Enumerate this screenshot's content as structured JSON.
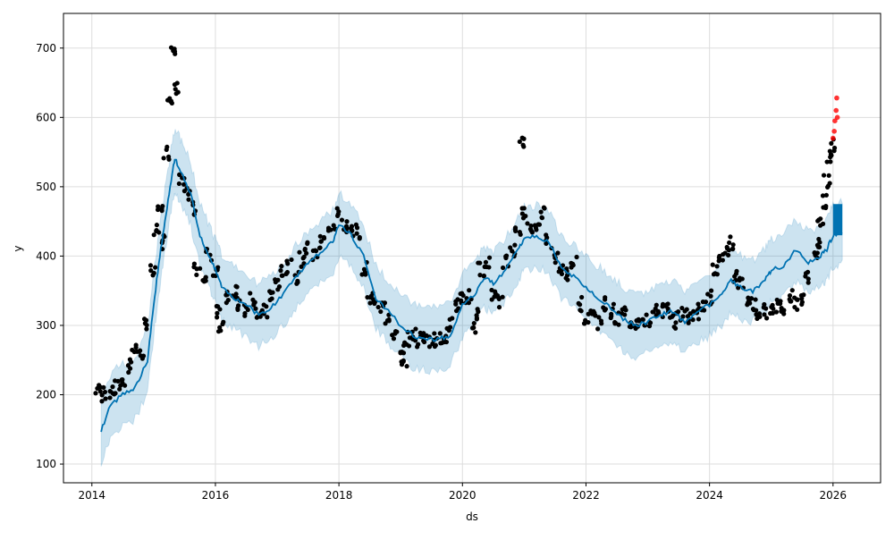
{
  "chart_data": {
    "type": "scatter",
    "title": "",
    "xlabel": "ds",
    "ylabel": "y",
    "xlim": [
      2013.54,
      2026.77
    ],
    "ylim": [
      73,
      750
    ],
    "xticks": [
      "2014",
      "2016",
      "2018",
      "2020",
      "2022",
      "2024",
      "2026"
    ],
    "yticks": [
      "100",
      "200",
      "300",
      "400",
      "500",
      "600",
      "700"
    ],
    "grid": true,
    "colors": {
      "actual": "#000000",
      "future_actual": "#ff0000",
      "forecast": "#0072b2",
      "band": "#0072b2"
    },
    "band_halfwidth": 45,
    "forecast_start": 2026.0,
    "yhat": [
      [
        2014.15,
        148
      ],
      [
        2014.3,
        185
      ],
      [
        2014.5,
        200
      ],
      [
        2014.7,
        210
      ],
      [
        2014.9,
        250
      ],
      [
        2015.0,
        330
      ],
      [
        2015.1,
        400
      ],
      [
        2015.2,
        460
      ],
      [
        2015.3,
        520
      ],
      [
        2015.35,
        540
      ],
      [
        2015.45,
        520
      ],
      [
        2015.6,
        490
      ],
      [
        2015.75,
        430
      ],
      [
        2015.9,
        400
      ],
      [
        2016.0,
        380
      ],
      [
        2016.1,
        355
      ],
      [
        2016.3,
        340
      ],
      [
        2016.5,
        330
      ],
      [
        2016.7,
        315
      ],
      [
        2016.9,
        325
      ],
      [
        2017.1,
        345
      ],
      [
        2017.3,
        370
      ],
      [
        2017.5,
        390
      ],
      [
        2017.7,
        405
      ],
      [
        2017.9,
        420
      ],
      [
        2018.0,
        445
      ],
      [
        2018.2,
        430
      ],
      [
        2018.4,
        400
      ],
      [
        2018.6,
        340
      ],
      [
        2018.8,
        320
      ],
      [
        2019.0,
        300
      ],
      [
        2019.2,
        285
      ],
      [
        2019.4,
        280
      ],
      [
        2019.6,
        280
      ],
      [
        2019.8,
        285
      ],
      [
        2020.0,
        330
      ],
      [
        2020.2,
        345
      ],
      [
        2020.35,
        370
      ],
      [
        2020.5,
        360
      ],
      [
        2020.7,
        380
      ],
      [
        2020.9,
        410
      ],
      [
        2021.0,
        425
      ],
      [
        2021.2,
        430
      ],
      [
        2021.4,
        420
      ],
      [
        2021.6,
        385
      ],
      [
        2021.8,
        370
      ],
      [
        2022.0,
        355
      ],
      [
        2022.2,
        340
      ],
      [
        2022.4,
        325
      ],
      [
        2022.6,
        310
      ],
      [
        2022.8,
        300
      ],
      [
        2023.0,
        305
      ],
      [
        2023.2,
        315
      ],
      [
        2023.4,
        320
      ],
      [
        2023.6,
        305
      ],
      [
        2023.8,
        320
      ],
      [
        2024.0,
        330
      ],
      [
        2024.2,
        345
      ],
      [
        2024.35,
        365
      ],
      [
        2024.5,
        355
      ],
      [
        2024.7,
        350
      ],
      [
        2024.9,
        365
      ],
      [
        2025.0,
        380
      ],
      [
        2025.2,
        385
      ],
      [
        2025.4,
        410
      ],
      [
        2025.6,
        390
      ],
      [
        2025.8,
        400
      ],
      [
        2025.9,
        410
      ],
      [
        2026.0,
        430
      ],
      [
        2026.15,
        435
      ]
    ],
    "actual": [
      [
        2014.1,
        205
      ],
      [
        2014.2,
        200
      ],
      [
        2014.3,
        205
      ],
      [
        2014.4,
        210
      ],
      [
        2014.5,
        220
      ],
      [
        2014.6,
        240
      ],
      [
        2014.7,
        265
      ],
      [
        2014.8,
        260
      ],
      [
        2014.9,
        300
      ],
      [
        2015.0,
        380
      ],
      [
        2015.05,
        440
      ],
      [
        2015.1,
        470
      ],
      [
        2015.15,
        420
      ],
      [
        2015.2,
        550
      ],
      [
        2015.25,
        620
      ],
      [
        2015.3,
        700
      ],
      [
        2015.35,
        640
      ],
      [
        2015.45,
        510
      ],
      [
        2015.55,
        490
      ],
      [
        2015.65,
        470
      ],
      [
        2015.7,
        380
      ],
      [
        2015.8,
        370
      ],
      [
        2015.9,
        400
      ],
      [
        2016.0,
        380
      ],
      [
        2016.05,
        320
      ],
      [
        2016.1,
        300
      ],
      [
        2016.2,
        340
      ],
      [
        2016.3,
        350
      ],
      [
        2016.4,
        330
      ],
      [
        2016.5,
        320
      ],
      [
        2016.6,
        340
      ],
      [
        2016.7,
        315
      ],
      [
        2016.8,
        320
      ],
      [
        2016.9,
        340
      ],
      [
        2017.0,
        360
      ],
      [
        2017.1,
        380
      ],
      [
        2017.2,
        385
      ],
      [
        2017.3,
        370
      ],
      [
        2017.4,
        395
      ],
      [
        2017.5,
        410
      ],
      [
        2017.6,
        405
      ],
      [
        2017.7,
        420
      ],
      [
        2017.8,
        430
      ],
      [
        2017.9,
        440
      ],
      [
        2018.0,
        460
      ],
      [
        2018.1,
        445
      ],
      [
        2018.2,
        440
      ],
      [
        2018.3,
        435
      ],
      [
        2018.4,
        380
      ],
      [
        2018.5,
        340
      ],
      [
        2018.6,
        330
      ],
      [
        2018.7,
        330
      ],
      [
        2018.8,
        310
      ],
      [
        2018.9,
        290
      ],
      [
        2019.0,
        270
      ],
      [
        2019.05,
        240
      ],
      [
        2019.1,
        280
      ],
      [
        2019.2,
        285
      ],
      [
        2019.3,
        280
      ],
      [
        2019.4,
        285
      ],
      [
        2019.5,
        280
      ],
      [
        2019.6,
        280
      ],
      [
        2019.7,
        275
      ],
      [
        2019.8,
        300
      ],
      [
        2019.9,
        330
      ],
      [
        2020.0,
        340
      ],
      [
        2020.1,
        340
      ],
      [
        2020.2,
        300
      ],
      [
        2020.25,
        320
      ],
      [
        2020.3,
        380
      ],
      [
        2020.4,
        390
      ],
      [
        2020.5,
        340
      ],
      [
        2020.6,
        335
      ],
      [
        2020.7,
        390
      ],
      [
        2020.8,
        410
      ],
      [
        2020.9,
        430
      ],
      [
        2020.95,
        565
      ],
      [
        2021.0,
        460
      ],
      [
        2021.1,
        440
      ],
      [
        2021.2,
        440
      ],
      [
        2021.3,
        460
      ],
      [
        2021.4,
        420
      ],
      [
        2021.5,
        400
      ],
      [
        2021.6,
        385
      ],
      [
        2021.7,
        375
      ],
      [
        2021.8,
        390
      ],
      [
        2021.9,
        330
      ],
      [
        2022.0,
        310
      ],
      [
        2022.1,
        320
      ],
      [
        2022.2,
        305
      ],
      [
        2022.3,
        330
      ],
      [
        2022.4,
        320
      ],
      [
        2022.5,
        310
      ],
      [
        2022.6,
        315
      ],
      [
        2022.7,
        300
      ],
      [
        2022.8,
        300
      ],
      [
        2022.9,
        305
      ],
      [
        2023.0,
        310
      ],
      [
        2023.1,
        320
      ],
      [
        2023.2,
        320
      ],
      [
        2023.3,
        325
      ],
      [
        2023.4,
        305
      ],
      [
        2023.5,
        310
      ],
      [
        2023.6,
        315
      ],
      [
        2023.7,
        310
      ],
      [
        2023.8,
        320
      ],
      [
        2023.9,
        330
      ],
      [
        2024.0,
        340
      ],
      [
        2024.1,
        380
      ],
      [
        2024.2,
        395
      ],
      [
        2024.3,
        410
      ],
      [
        2024.35,
        420
      ],
      [
        2024.4,
        370
      ],
      [
        2024.5,
        360
      ],
      [
        2024.6,
        340
      ],
      [
        2024.7,
        330
      ],
      [
        2024.8,
        320
      ],
      [
        2024.9,
        320
      ],
      [
        2025.0,
        325
      ],
      [
        2025.1,
        330
      ],
      [
        2025.2,
        320
      ],
      [
        2025.3,
        345
      ],
      [
        2025.4,
        330
      ],
      [
        2025.5,
        340
      ],
      [
        2025.6,
        370
      ],
      [
        2025.7,
        400
      ],
      [
        2025.75,
        420
      ],
      [
        2025.8,
        450
      ],
      [
        2025.85,
        480
      ],
      [
        2025.9,
        510
      ],
      [
        2025.95,
        540
      ],
      [
        2026.0,
        560
      ]
    ],
    "future_actual": [
      [
        2026.0,
        570
      ],
      [
        2026.02,
        580
      ],
      [
        2026.03,
        595
      ],
      [
        2026.05,
        610
      ],
      [
        2026.06,
        628
      ],
      [
        2026.07,
        600
      ]
    ]
  }
}
